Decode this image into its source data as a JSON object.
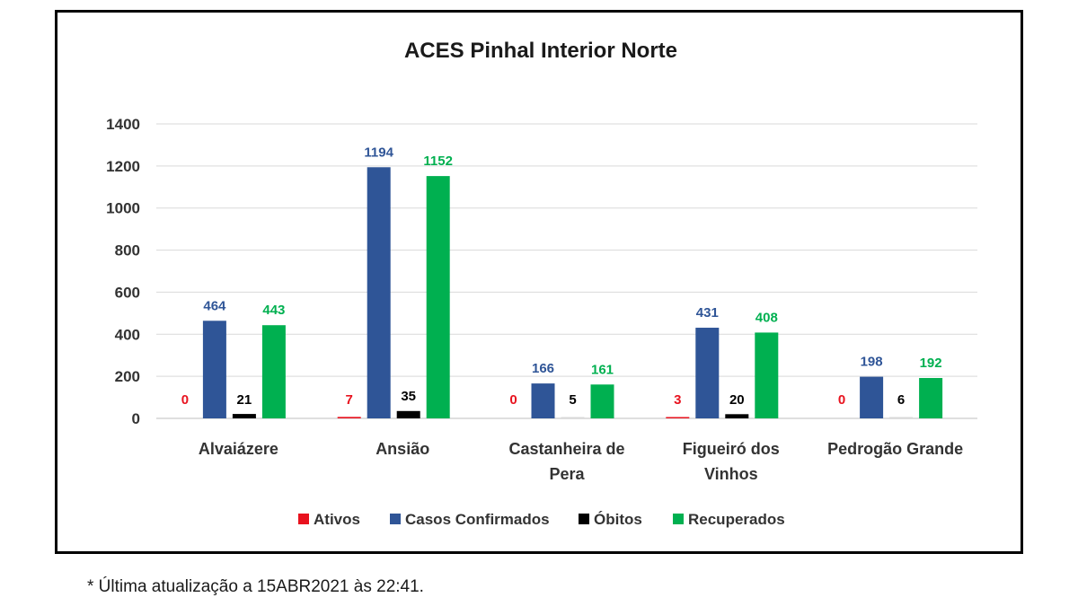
{
  "chart_data": {
    "type": "bar",
    "title": "ACES Pinhal Interior Norte",
    "categories": [
      [
        "Alvaiázere"
      ],
      [
        "Ansião"
      ],
      [
        "Castanheira de",
        "Pera"
      ],
      [
        "Figueiró dos",
        "Vinhos"
      ],
      [
        "Pedrogão Grande"
      ]
    ],
    "series": [
      {
        "name": "Ativos",
        "color": "#e8121e",
        "label_color": "#e8121e",
        "values": [
          0,
          7,
          0,
          3,
          0
        ]
      },
      {
        "name": "Casos Confirmados",
        "color": "#2f5597",
        "label_color": "#2f5597",
        "values": [
          464,
          1194,
          166,
          431,
          198
        ]
      },
      {
        "name": "Óbitos",
        "color": "#000000",
        "label_color": "#000000",
        "values": [
          21,
          35,
          5,
          20,
          6
        ]
      },
      {
        "name": "Recuperados",
        "color": "#00b050",
        "label_color": "#00b050",
        "values": [
          443,
          1152,
          161,
          408,
          192
        ]
      }
    ],
    "ylim": [
      0,
      1400
    ],
    "yticks": [
      "0",
      "200",
      "400",
      "600",
      "800",
      "1000",
      "1200",
      "1400"
    ],
    "grid": true,
    "legend_position": "bottom"
  },
  "footnote": "* Última atualização a 15ABR2021 às 22:41."
}
